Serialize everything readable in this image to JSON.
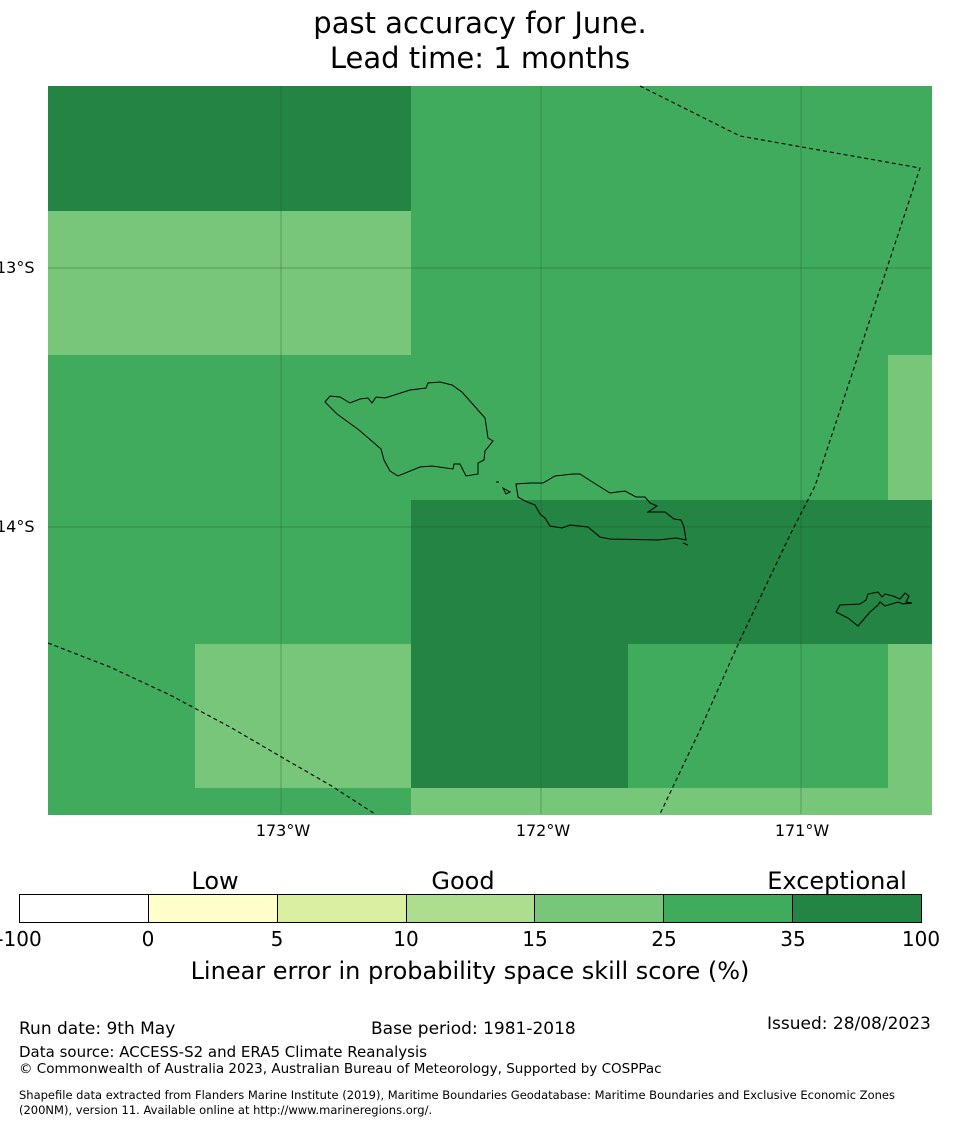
{
  "title": {
    "lines": [
      "past accuracy for June.",
      "Lead time: 1 months"
    ]
  },
  "map": {
    "lat_labels": [
      "13°S",
      "14°S"
    ],
    "lon_labels": [
      "173°W",
      "172°W",
      "171°W"
    ],
    "grid": [
      [
        35,
        35,
        25,
        25,
        25,
        25
      ],
      [
        15,
        15,
        25,
        25,
        25,
        25
      ],
      [
        25,
        25,
        25,
        25,
        25,
        15
      ],
      [
        25,
        25,
        35,
        35,
        35,
        35
      ],
      [
        25,
        15,
        35,
        25,
        25,
        15
      ],
      [
        25,
        25,
        15,
        15,
        15,
        15
      ]
    ],
    "colors": {
      "land_outline": "#000000",
      "boundary_line": "#000000",
      "gridline": "#1b5e2e"
    }
  },
  "legend": {
    "categories": [
      "Low",
      "Good",
      "Exceptional"
    ],
    "ticks": [
      "-100",
      "0",
      "5",
      "10",
      "15",
      "25",
      "35",
      "100"
    ],
    "colors": [
      "#ffffff",
      "#ffffcc",
      "#d9f0a3",
      "#addd8e",
      "#78c679",
      "#41ab5d",
      "#238443"
    ],
    "label": "Linear error in probability space skill score (%)"
  },
  "footer": {
    "run_date": "Run date: 9th May",
    "base_period": "Base period: 1981-2018",
    "issued": "Issued: 28/08/2023",
    "data_source": "Data source: ACCESS-S2 and ERA5 Climate Reanalysis",
    "copyright": "© Commonwealth of Australia 2023, Australian Bureau of Meteorology, Supported by COSPPac",
    "shapefile_line1": "Shapefile data extracted from Flanders Marine Institute (2019), Maritime Boundaries Geodatabase: Maritime Boundaries and Exclusive Economic Zones",
    "shapefile_line2": "(200NM), version 11. Available online at http://www.marineregions.org/."
  }
}
